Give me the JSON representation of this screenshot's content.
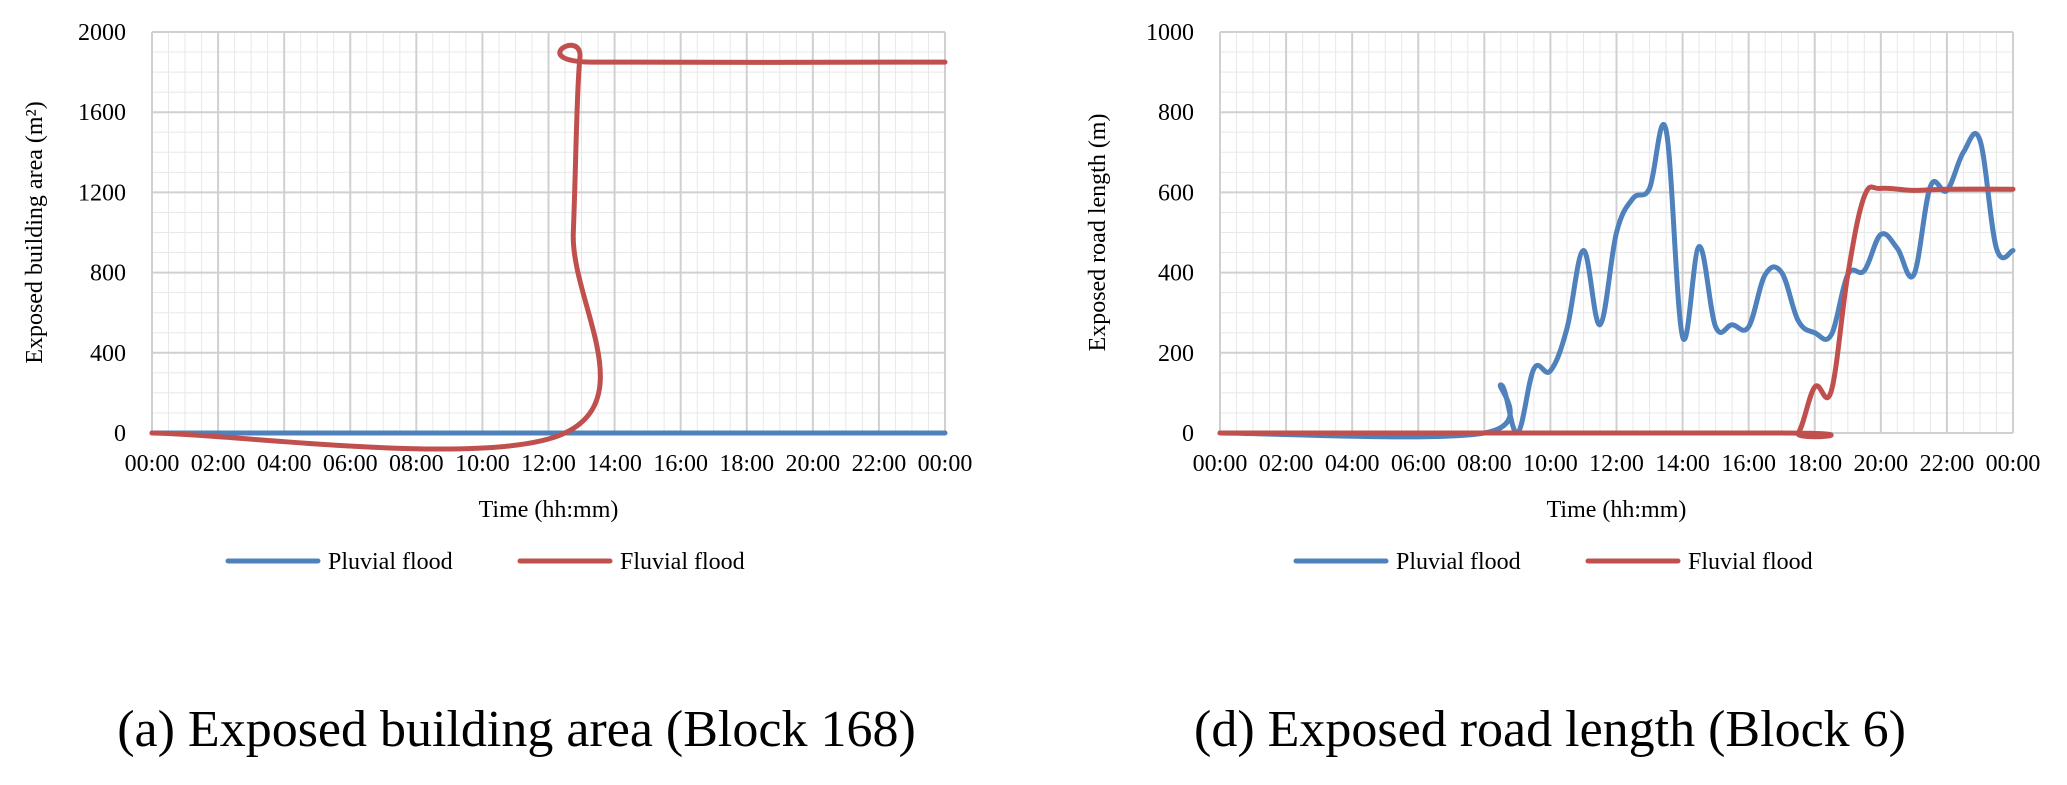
{
  "chart_data": [
    {
      "type": "line",
      "caption": "(a) Exposed building area (Block 168)",
      "title": "",
      "xlabel": "Time (hh:mm)",
      "ylabel": "Exposed building area (m²)",
      "ylim": [
        0,
        2000
      ],
      "yticks": [
        "0",
        "400",
        "800",
        "1200",
        "1600",
        "2000"
      ],
      "x_unit": "hours",
      "xlim": [
        0,
        24
      ],
      "xticks": [
        "00:00",
        "02:00",
        "04:00",
        "06:00",
        "08:00",
        "10:00",
        "12:00",
        "14:00",
        "16:00",
        "18:00",
        "20:00",
        "22:00",
        "00:00"
      ],
      "grid": true,
      "legend": "bottom",
      "series": [
        {
          "name": "Pluvial flood",
          "color": "#4f81bd",
          "points": [
            [
              0,
              0
            ],
            [
              24,
              0
            ]
          ]
        },
        {
          "name": "Fluvial flood",
          "color": "#c0504d",
          "points": [
            [
              0,
              0
            ],
            [
              12.5,
              0
            ],
            [
              12.75,
              1000
            ],
            [
              12.95,
              1870
            ],
            [
              13.3,
              1850
            ],
            [
              24,
              1850
            ]
          ]
        }
      ]
    },
    {
      "type": "line",
      "caption": "(d) Exposed road length (Block 6)",
      "title": "",
      "xlabel": "Time (hh:mm)",
      "ylabel": "Exposed road length (m)",
      "ylim": [
        0,
        1000
      ],
      "yticks": [
        "0",
        "200",
        "400",
        "600",
        "800",
        "1000"
      ],
      "x_unit": "hours",
      "xlim": [
        0,
        24
      ],
      "xticks": [
        "00:00",
        "02:00",
        "04:00",
        "06:00",
        "08:00",
        "10:00",
        "12:00",
        "14:00",
        "16:00",
        "18:00",
        "20:00",
        "22:00",
        "00:00"
      ],
      "grid": true,
      "legend": "bottom",
      "series": [
        {
          "name": "Pluvial flood",
          "color": "#4f81bd",
          "points": [
            [
              0,
              0
            ],
            [
              8.0,
              0
            ],
            [
              8.5,
              120
            ],
            [
              9.0,
              0
            ],
            [
              9.5,
              160
            ],
            [
              10.0,
              155
            ],
            [
              10.5,
              260
            ],
            [
              11.0,
              455
            ],
            [
              11.5,
              270
            ],
            [
              12.0,
              500
            ],
            [
              12.5,
              585
            ],
            [
              13.0,
              610
            ],
            [
              13.5,
              755
            ],
            [
              14.0,
              240
            ],
            [
              14.5,
              465
            ],
            [
              15.0,
              265
            ],
            [
              15.5,
              270
            ],
            [
              16.0,
              265
            ],
            [
              16.5,
              395
            ],
            [
              17.0,
              400
            ],
            [
              17.5,
              280
            ],
            [
              18.0,
              250
            ],
            [
              18.5,
              245
            ],
            [
              19.0,
              395
            ],
            [
              19.5,
              405
            ],
            [
              20.0,
              495
            ],
            [
              20.5,
              460
            ],
            [
              21.0,
              395
            ],
            [
              21.5,
              615
            ],
            [
              22.0,
              605
            ],
            [
              22.5,
              700
            ],
            [
              23.0,
              730
            ],
            [
              23.5,
              460
            ],
            [
              24.0,
              455
            ]
          ]
        },
        {
          "name": "Fluvial flood",
          "color": "#c0504d",
          "points": [
            [
              0,
              0
            ],
            [
              17.0,
              0
            ],
            [
              17.5,
              0
            ],
            [
              18.0,
              115
            ],
            [
              18.5,
              105
            ],
            [
              19.0,
              395
            ],
            [
              19.5,
              590
            ],
            [
              20.0,
              610
            ],
            [
              21.0,
              605
            ],
            [
              22.0,
              608
            ],
            [
              24.0,
              608
            ]
          ]
        }
      ]
    }
  ]
}
